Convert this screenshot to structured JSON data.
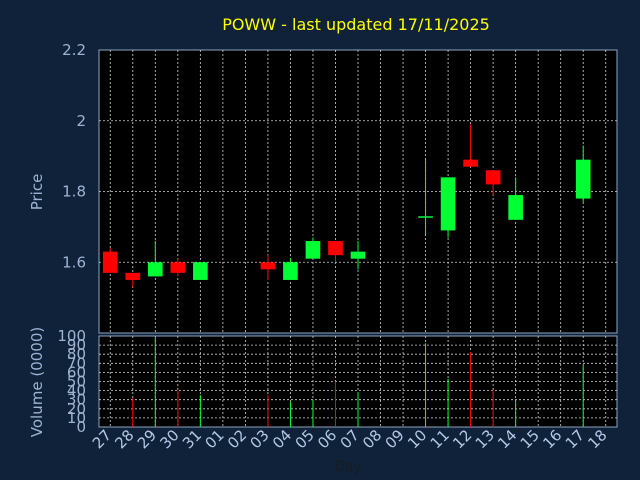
{
  "chart_data": {
    "type": "candlestick",
    "title": "POWW - last updated 17/11/2025",
    "price_axis": {
      "ylabel": "Price",
      "ylim": [
        1.4,
        2.2
      ],
      "ticks": [
        "1.6",
        "1.8",
        "2",
        "2.2"
      ]
    },
    "volume_axis": {
      "ylabel": "Volume (0000)",
      "ylim": [
        0,
        100
      ],
      "ticks": [
        "0",
        "10",
        "20",
        "30",
        "40",
        "50",
        "60",
        "70",
        "80",
        "90",
        "100"
      ]
    },
    "xlabel": "Day",
    "x_ticks": [
      "27",
      "28",
      "29",
      "30",
      "31",
      "01",
      "02",
      "03",
      "04",
      "05",
      "06",
      "07",
      "08",
      "09",
      "10",
      "11",
      "12",
      "13",
      "14",
      "15",
      "16",
      "17",
      "18"
    ],
    "candles": [
      {
        "day": "27",
        "open": 1.63,
        "high": 1.64,
        "low": 1.57,
        "close": 1.57,
        "volume": 0
      },
      {
        "day": "28",
        "open": 1.57,
        "high": 1.57,
        "low": 1.53,
        "close": 1.55,
        "volume": 32
      },
      {
        "day": "29",
        "open": 1.56,
        "high": 1.66,
        "low": 1.56,
        "close": 1.6,
        "volume": 98
      },
      {
        "day": "30",
        "open": 1.6,
        "high": 1.61,
        "low": 1.56,
        "close": 1.57,
        "volume": 40
      },
      {
        "day": "31",
        "open": 1.55,
        "high": 1.6,
        "low": 1.55,
        "close": 1.6,
        "volume": 35
      },
      {
        "day": "03",
        "open": 1.6,
        "high": 1.62,
        "low": 1.55,
        "close": 1.58,
        "volume": 35
      },
      {
        "day": "04",
        "open": 1.55,
        "high": 1.61,
        "low": 1.55,
        "close": 1.6,
        "volume": 28
      },
      {
        "day": "05",
        "open": 1.61,
        "high": 1.67,
        "low": 1.61,
        "close": 1.66,
        "volume": 30
      },
      {
        "day": "06",
        "open": 1.66,
        "high": 1.66,
        "low": 1.6,
        "close": 1.62,
        "volume": 50
      },
      {
        "day": "07",
        "open": 1.61,
        "high": 1.66,
        "low": 1.58,
        "close": 1.63,
        "volume": 38
      },
      {
        "day": "10",
        "open": 1.73,
        "high": 1.89,
        "low": 1.68,
        "close": 1.73,
        "volume": 92
      },
      {
        "day": "11",
        "open": 1.69,
        "high": 1.84,
        "low": 1.67,
        "close": 1.84,
        "volume": 53
      },
      {
        "day": "12",
        "open": 1.89,
        "high": 1.99,
        "low": 1.87,
        "close": 1.87,
        "volume": 82
      },
      {
        "day": "13",
        "open": 1.86,
        "high": 1.86,
        "low": 1.79,
        "close": 1.82,
        "volume": 40
      },
      {
        "day": "14",
        "open": 1.72,
        "high": 1.84,
        "low": 1.72,
        "close": 1.79,
        "volume": 28
      },
      {
        "day": "17",
        "open": 1.78,
        "high": 1.93,
        "low": 1.77,
        "close": 1.89,
        "volume": 68
      }
    ],
    "grid": true,
    "colors": {
      "background": "#0f223a",
      "plot_background": "#000000",
      "grid": "#d0d0d0",
      "up": "#00ff33",
      "down": "#ff0000",
      "title": "#ffff00",
      "axis_text": "#9fb4d4"
    }
  }
}
